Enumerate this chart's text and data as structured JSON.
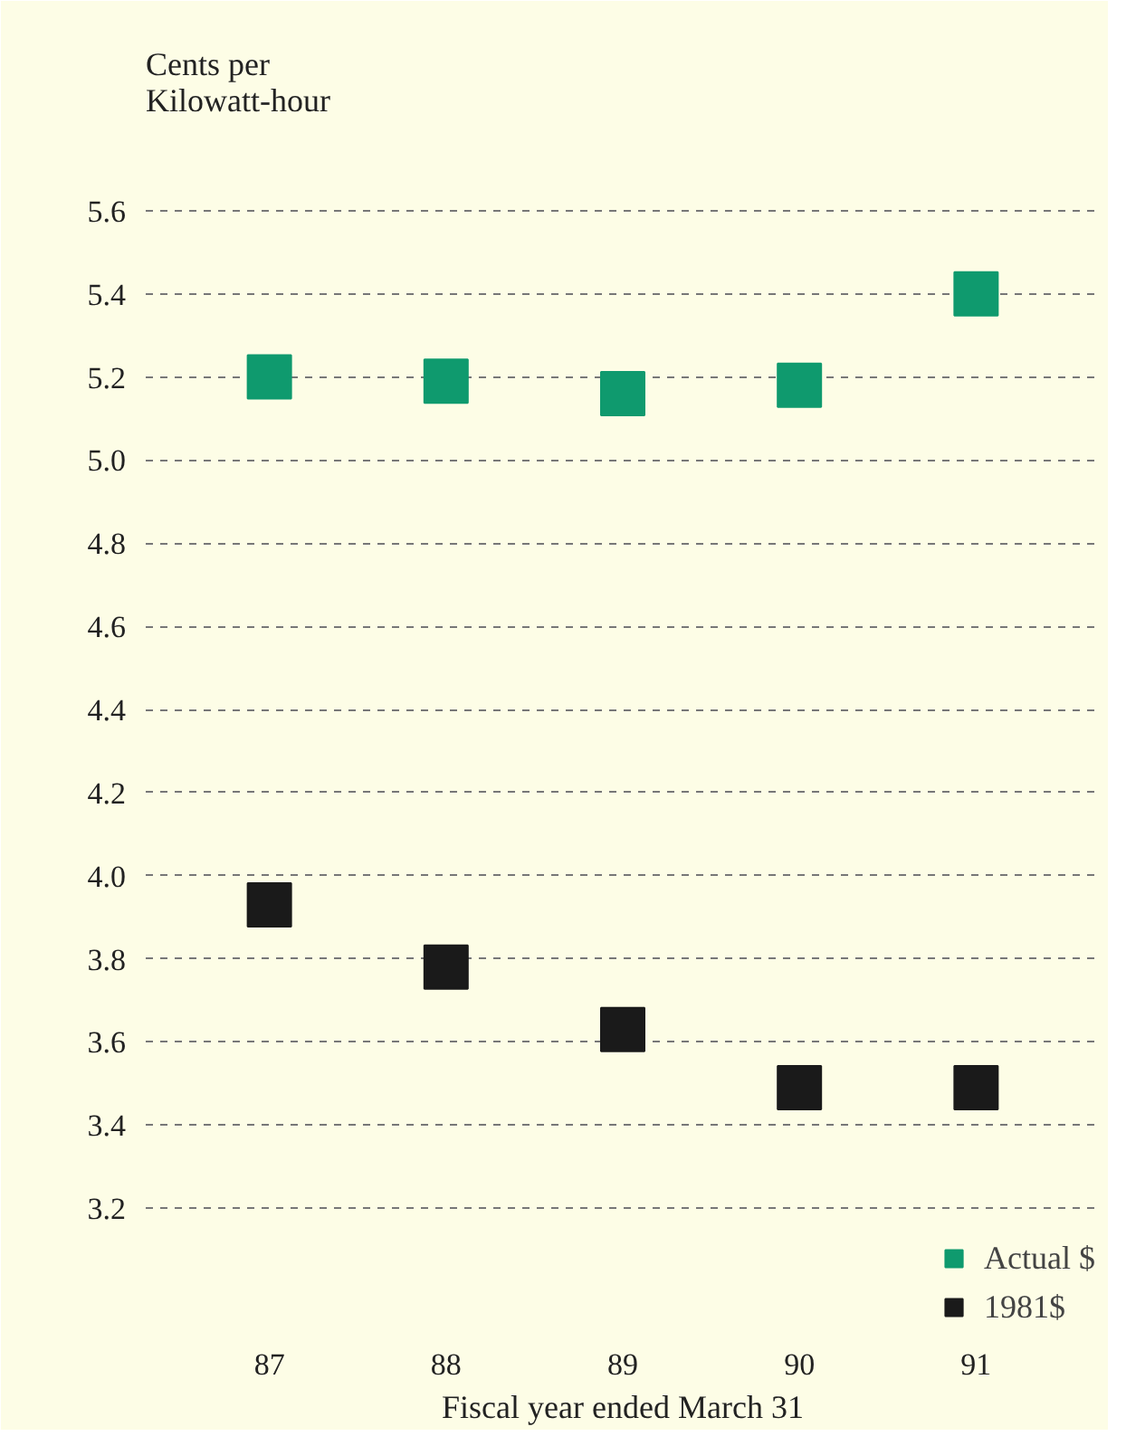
{
  "chart_data": {
    "type": "scatter",
    "ylabel": "Cents per\nKilowatt-hour",
    "xlabel": "Fiscal year ended March 31",
    "categories": [
      "87",
      "88",
      "89",
      "90",
      "91"
    ],
    "series": [
      {
        "name": "Actual $",
        "color": "#0f9a6e",
        "values": [
          5.2,
          5.19,
          5.16,
          5.18,
          5.4
        ]
      },
      {
        "name": "1981$",
        "color": "#1a1a1a",
        "values": [
          3.93,
          3.78,
          3.63,
          3.49,
          3.49
        ]
      }
    ],
    "ylim": [
      2.9,
      5.8
    ],
    "yticks": [
      3.2,
      3.4,
      3.6,
      3.8,
      {
        "value": 4.0,
        "label": "4.0"
      },
      4.2,
      4.4,
      4.6,
      4.8,
      {
        "value": 5.0,
        "label": "5.0"
      },
      5.2,
      5.4,
      5.6
    ],
    "grid": "y",
    "legend": "bottom right",
    "marker": "square"
  }
}
